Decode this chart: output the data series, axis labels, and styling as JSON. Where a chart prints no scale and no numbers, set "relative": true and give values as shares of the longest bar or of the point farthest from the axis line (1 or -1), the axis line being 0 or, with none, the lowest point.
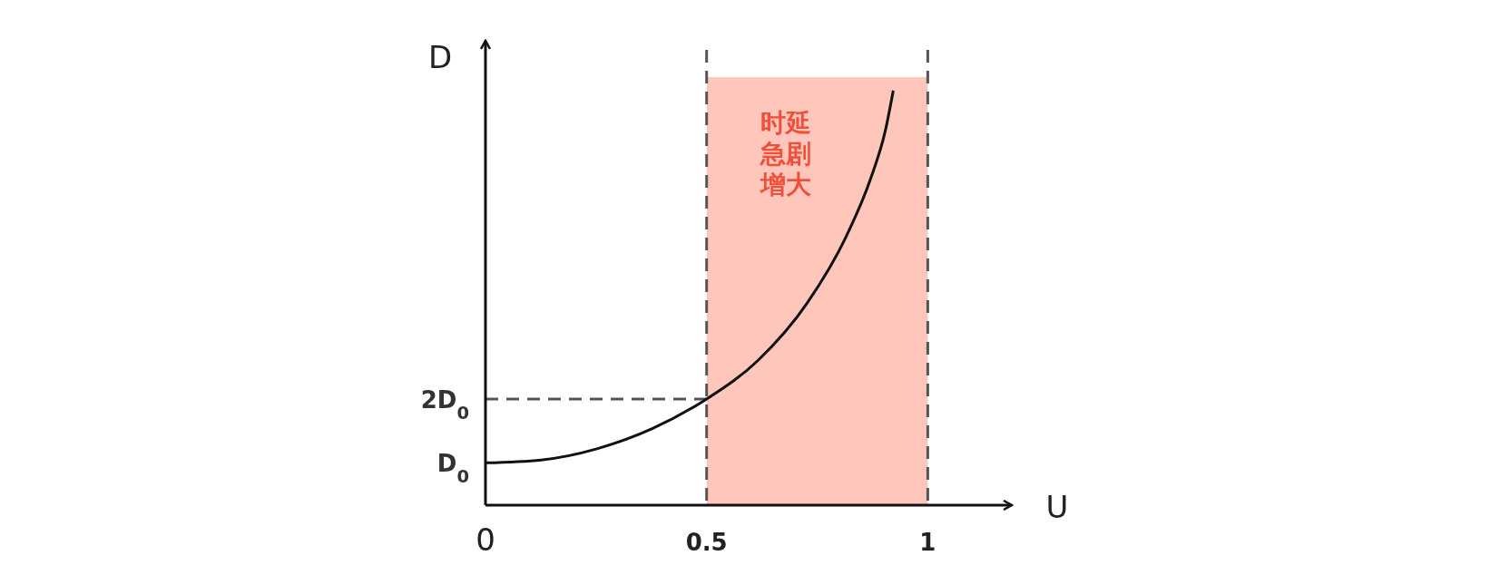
{
  "chart_data": {
    "type": "line",
    "xlabel": "U",
    "ylabel": "D",
    "relative": true,
    "x": [
      0,
      0.126,
      0.252,
      0.378,
      0.5,
      0.616,
      0.727,
      0.816,
      0.871,
      0.904,
      0.922
    ],
    "series": [
      {
        "color": "#111111",
        "values": [
          0.102,
          0.109,
          0.136,
          0.185,
          0.256,
          0.349,
          0.487,
          0.649,
          0.788,
          0.903,
          1
        ]
      }
    ],
    "xlim": [
      0,
      1.19
    ],
    "xticks": [
      0,
      0.5,
      1
    ],
    "annotations": [
      {
        "text": "D$_{0}$",
        "x": 0,
        "y": 0.102
      },
      {
        "text": "2D$_{0}$",
        "x": 0,
        "y": 0.256
      }
    ],
    "ref_lines": [
      {
        "axis": "x",
        "value": 0.5,
        "line_style": "dashed",
        "color": "#555555"
      },
      {
        "axis": "x",
        "value": 1,
        "line_style": "dashed",
        "color": "#555555"
      },
      {
        "axis": "y",
        "value": 0.256,
        "line_style": "dashed",
        "color": "#555555"
      }
    ],
    "bands": [
      {
        "axis": "x",
        "from": 0.5,
        "to": 1,
        "color": "#ffc6bc",
        "label": "时延急剧增大"
      }
    ],
    "marker": "none",
    "line_style": "solid"
  }
}
